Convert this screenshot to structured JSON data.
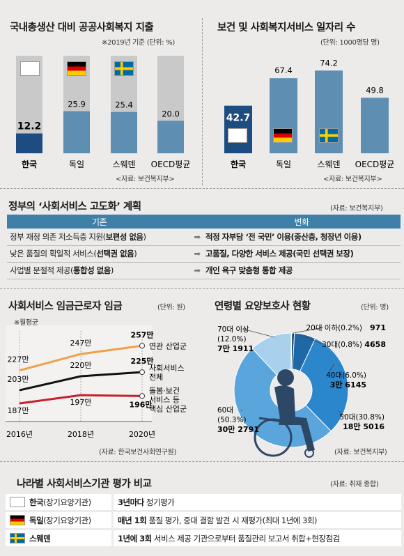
{
  "gdp_chart": {
    "title": "국내총생산 대비 공공사회복지 지출",
    "note": "※2019년 기준 (단위: %)",
    "source": "<자료: 보건복지부>",
    "color_kr": "#1d4c80",
    "color_other": "#5e8fb3",
    "color_bg": "#c9c9c9"
  },
  "jobs_chart": {
    "title": "보건 및 사회복지서비스 일자리 수",
    "note": "(단위: 1000명당 명)",
    "source": "<자료: 보건복지부>",
    "color_kr": "#1d4c80",
    "color_other": "#5e8fb3"
  },
  "reform": {
    "title": "정부의 ‘사회서비스 고도화’ 계획",
    "source": "(자료: 보건복지부)",
    "header_left": "기존",
    "header_right": "변화",
    "rows": [
      {
        "before": "정부 재정 의존 저소득층 지원(",
        "before_bold": "보편성 없음",
        "before_end": ")",
        "after": "적정 자부담 ‘전 국민’ 이용(중산층, 청장년 이용)"
      },
      {
        "before": "낮은 품질의 획일적 서비스(",
        "before_bold": "선택권 없음",
        "before_end": ")",
        "after": "고품질, 다양한 서비스 제공(국민 선택권 보장)"
      },
      {
        "before": "사업별 분절적 제공(",
        "before_bold": "통합성 없음",
        "before_end": ")",
        "after": "개인 욕구 맞춤형 통합 제공"
      }
    ],
    "arrow": "➡"
  },
  "wage_chart": {
    "title": "사회서비스 임금근로자 임금",
    "unit": "(단위: 원)",
    "note": "※월평균",
    "source": "(자료: 한국보건사회연구원)"
  },
  "care_chart": {
    "title": "연령별 요양보호사 현황",
    "unit": "(단위: 명)",
    "source": "(자료: 보건복지부)"
  },
  "eval": {
    "title": "나라별 사회서비스기관 평가 비교",
    "source": "(자료: 취재 종합)",
    "rows": [
      {
        "country": "한국",
        "org": "(장기요양기관)",
        "bold": "3년마다",
        "text": " 정기평가"
      },
      {
        "country": "독일",
        "org": "(장기요양기관)",
        "bold": "매년 1회",
        "text": " 품질 평가, 중대 결함 발견 시 재평가(최대 1년에 3회)"
      },
      {
        "country": "스웨덴",
        "org": "",
        "bold": "1년에 3회",
        "text": " 서비스 제공 기관으로부터 품질관리 보고서 취합+현장점검"
      }
    ]
  },
  "chart_data": [
    {
      "type": "bar",
      "title": "국내총생산 대비 공공사회복지 지출",
      "categories": [
        "한국",
        "독일",
        "스웨덴",
        "OECD평균"
      ],
      "values": [
        12.2,
        25.9,
        25.4,
        20.0
      ],
      "value_labels": [
        "12.2",
        "25.9",
        "25.4",
        "20.0"
      ],
      "ylim": [
        0,
        60
      ]
    },
    {
      "type": "bar",
      "title": "보건 및 사회복지서비스 일자리 수",
      "categories": [
        "한국",
        "독일",
        "스웨덴",
        "OECD평균"
      ],
      "values": [
        42.7,
        67.4,
        74.2,
        49.8
      ],
      "value_labels": [
        "42.7",
        "67.4",
        "74.2",
        "49.8"
      ],
      "ylim": [
        0,
        80
      ]
    },
    {
      "type": "line",
      "title": "사회서비스 임금근로자 임금",
      "x": [
        "2016년",
        "2018년",
        "2020년"
      ],
      "series": [
        {
          "name": "연관 산업군",
          "values": [
            227,
            247,
            257
          ],
          "labels": [
            "227만",
            "247만",
            "257만"
          ],
          "color": "#f0a048"
        },
        {
          "name": "사회서비스 전체",
          "values": [
            203,
            220,
            225
          ],
          "labels": [
            "203만",
            "220만",
            "225만"
          ],
          "color": "#111111"
        },
        {
          "name": "돌봄·보건 서비스 등 핵심 산업군",
          "values": [
            187,
            197,
            196
          ],
          "labels": [
            "187만",
            "197만",
            "196만"
          ],
          "color": "#c8202a"
        }
      ],
      "ylim": [
        165,
        275
      ]
    },
    {
      "type": "pie",
      "title": "연령별 요양보호사 현황",
      "slices": [
        {
          "label": "20대 이하",
          "pct_label": "(0.2%)",
          "value": 971,
          "value_label": "971",
          "color": "#0e2f52"
        },
        {
          "label": "30대",
          "pct_label": "(0.8%)",
          "value": 4658,
          "value_label": "4658",
          "color": "#19466f"
        },
        {
          "label": "40대",
          "pct_label": "(6.0%)",
          "value": 36145,
          "value_label": "3만 6145",
          "color": "#1f68a8"
        },
        {
          "label": "50대",
          "pct_label": "(30.8%)",
          "value": 185016,
          "value_label": "18만 5016",
          "color": "#2c86cc"
        },
        {
          "label": "60대",
          "pct_label": "(50.3%)",
          "value": 302791,
          "value_label": "30만 2791",
          "color": "#5aa6dc"
        },
        {
          "label": "70대 이상",
          "pct_label": "(12.0%)",
          "value": 71911,
          "value_label": "7만 1911",
          "color": "#a9d0ec"
        }
      ]
    }
  ]
}
